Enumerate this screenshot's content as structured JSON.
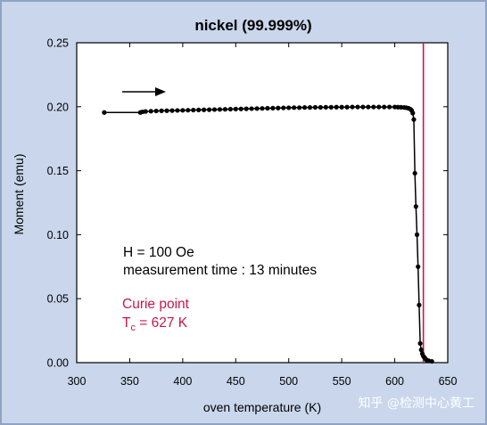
{
  "chart_data": {
    "type": "line",
    "title": "nickel (99.999%)",
    "xlabel": "oven temperature (K)",
    "ylabel": "Moment (emu)",
    "xlim": [
      300,
      650
    ],
    "ylim": [
      0,
      0.25
    ],
    "xticks": [
      300,
      350,
      400,
      450,
      500,
      550,
      600,
      650
    ],
    "yticks": [
      "0.00",
      "0.05",
      "0.10",
      "0.15",
      "0.20",
      "0.25"
    ],
    "grid": false,
    "series": [
      {
        "x": [
          326,
          360,
          362,
          365,
          370,
          375,
          380,
          385,
          390,
          395,
          400,
          405,
          410,
          415,
          420,
          425,
          430,
          435,
          440,
          445,
          450,
          455,
          460,
          465,
          470,
          475,
          480,
          485,
          490,
          495,
          500,
          505,
          510,
          515,
          520,
          525,
          530,
          535,
          540,
          545,
          550,
          555,
          560,
          565,
          570,
          575,
          580,
          585,
          590,
          595,
          600,
          603,
          606,
          609,
          611,
          613,
          615,
          616,
          617,
          618,
          619,
          620,
          621,
          622,
          623,
          624,
          625,
          626,
          627,
          628,
          629,
          630,
          632,
          635
        ],
        "y": [
          0.1955,
          0.1955,
          0.196,
          0.1963,
          0.1965,
          0.1967,
          0.1968,
          0.1969,
          0.197,
          0.1971,
          0.1972,
          0.1973,
          0.1974,
          0.1975,
          0.1976,
          0.1977,
          0.1978,
          0.1979,
          0.198,
          0.1981,
          0.1982,
          0.1983,
          0.1984,
          0.1985,
          0.1986,
          0.1987,
          0.1988,
          0.1989,
          0.199,
          0.1991,
          0.1992,
          0.1993,
          0.1993,
          0.1994,
          0.1994,
          0.1995,
          0.1995,
          0.1996,
          0.1996,
          0.1997,
          0.1997,
          0.1997,
          0.1998,
          0.1998,
          0.1998,
          0.1998,
          0.1998,
          0.1998,
          0.1998,
          0.1998,
          0.1998,
          0.1997,
          0.1996,
          0.1994,
          0.1992,
          0.1988,
          0.198,
          0.197,
          0.195,
          0.19,
          0.148,
          0.122,
          0.1,
          0.075,
          0.045,
          0.015,
          0.01,
          0.007,
          0.005,
          0.004,
          0.003,
          0.002,
          0.0015,
          0.001
        ]
      }
    ],
    "vline": {
      "x": 627,
      "color": "#c8174a"
    }
  },
  "annotations": {
    "field": "H = 100 Oe",
    "time": "measurement time : 13 minutes",
    "curie_label": "Curie point",
    "tc_symbol": "T",
    "tc_sub": "c",
    "tc_value": " = 627 K"
  },
  "watermark": "知乎 @检测中心黄工"
}
